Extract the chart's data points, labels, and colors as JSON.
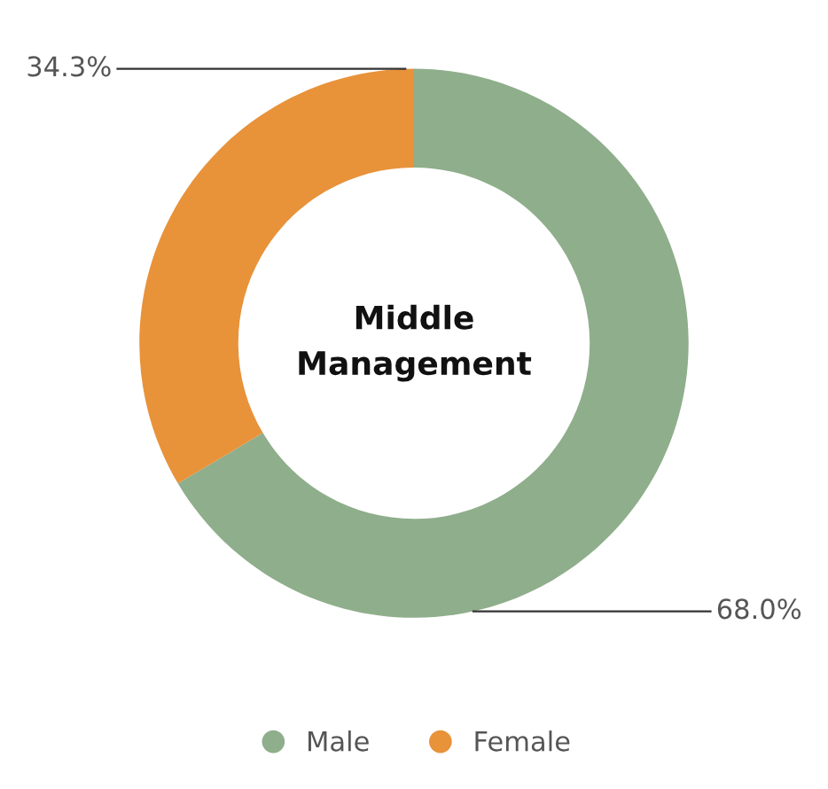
{
  "chart_data": {
    "type": "donut",
    "title": "Middle\nManagement",
    "categories": [
      "Male",
      "Female"
    ],
    "values": [
      68.0,
      34.3
    ],
    "colors": [
      "#8fae8b",
      "#e8923a"
    ],
    "value_labels": [
      "68.0%",
      "34.3%"
    ],
    "legend": "bottom"
  }
}
